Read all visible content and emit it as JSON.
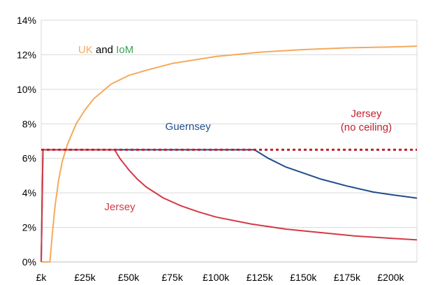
{
  "chart_data": {
    "type": "line",
    "title": "",
    "xlabel": "",
    "ylabel": "",
    "xlim": [
      0,
      215
    ],
    "ylim": [
      0,
      14
    ],
    "x_unit": "£k",
    "y_unit": "%",
    "grid": true,
    "x_ticks": [
      {
        "value": 0,
        "label": "£k"
      },
      {
        "value": 25,
        "label": "£25k"
      },
      {
        "value": 50,
        "label": "£50k"
      },
      {
        "value": 75,
        "label": "£75k"
      },
      {
        "value": 100,
        "label": "£100k"
      },
      {
        "value": 125,
        "label": "£125k"
      },
      {
        "value": 150,
        "label": "£150k"
      },
      {
        "value": 175,
        "label": "£175k"
      },
      {
        "value": 200,
        "label": "£200k"
      }
    ],
    "y_ticks": [
      {
        "value": 0,
        "label": "0%"
      },
      {
        "value": 2,
        "label": "2%"
      },
      {
        "value": 4,
        "label": "4%"
      },
      {
        "value": 6,
        "label": "6%"
      },
      {
        "value": 8,
        "label": "8%"
      },
      {
        "value": 10,
        "label": "10%"
      },
      {
        "value": 12,
        "label": "12%"
      },
      {
        "value": 14,
        "label": "14%"
      }
    ],
    "series": [
      {
        "name": "UK and IoM",
        "color": "#f5a95a",
        "style": "solid",
        "points": [
          [
            0,
            0
          ],
          [
            5,
            0
          ],
          [
            6,
            1.2
          ],
          [
            7,
            2.3
          ],
          [
            8,
            3.3
          ],
          [
            10,
            4.75
          ],
          [
            12,
            5.8
          ],
          [
            15,
            6.8
          ],
          [
            20,
            8.0
          ],
          [
            25,
            8.8
          ],
          [
            30,
            9.45
          ],
          [
            40,
            10.3
          ],
          [
            50,
            10.8
          ],
          [
            60,
            11.1
          ],
          [
            75,
            11.5
          ],
          [
            100,
            11.9
          ],
          [
            125,
            12.15
          ],
          [
            150,
            12.3
          ],
          [
            175,
            12.4
          ],
          [
            200,
            12.45
          ],
          [
            215,
            12.5
          ]
        ]
      },
      {
        "name": "Guernsey",
        "color": "#1f4e8c",
        "style": "solid",
        "points": [
          [
            0,
            0
          ],
          [
            1,
            6.5
          ],
          [
            122,
            6.5
          ],
          [
            130,
            6.0
          ],
          [
            140,
            5.5
          ],
          [
            150,
            5.15
          ],
          [
            160,
            4.8
          ],
          [
            175,
            4.4
          ],
          [
            190,
            4.05
          ],
          [
            200,
            3.9
          ],
          [
            215,
            3.7
          ]
        ]
      },
      {
        "name": "Jersey",
        "color": "#d33a45",
        "style": "solid",
        "points": [
          [
            0,
            0
          ],
          [
            1,
            6.5
          ],
          [
            42,
            6.5
          ],
          [
            45,
            6.0
          ],
          [
            50,
            5.35
          ],
          [
            55,
            4.8
          ],
          [
            60,
            4.35
          ],
          [
            70,
            3.7
          ],
          [
            80,
            3.25
          ],
          [
            90,
            2.9
          ],
          [
            100,
            2.6
          ],
          [
            120,
            2.2
          ],
          [
            140,
            1.9
          ],
          [
            160,
            1.7
          ],
          [
            180,
            1.5
          ],
          [
            200,
            1.37
          ],
          [
            215,
            1.28
          ]
        ]
      },
      {
        "name": "Jersey (no ceiling)",
        "color": "#c0202e",
        "style": "dotted",
        "points": [
          [
            0,
            6.5
          ],
          [
            215,
            6.5
          ]
        ]
      }
    ],
    "annotations": [
      {
        "id": "uk-iom",
        "parts": [
          {
            "text": "UK",
            "color": "#f5a95a"
          },
          {
            "text": " and ",
            "color": "#000000"
          },
          {
            "text": "IoM",
            "color": "#3aa357"
          }
        ],
        "x": 37,
        "y": 12.1
      },
      {
        "id": "guernsey",
        "parts": [
          {
            "text": "Guernsey",
            "color": "#1f4e8c"
          }
        ],
        "x": 84,
        "y": 7.65
      },
      {
        "id": "jersey",
        "parts": [
          {
            "text": "Jersey",
            "color": "#d33a45"
          }
        ],
        "x": 45,
        "y": 3.0
      },
      {
        "id": "jersey-no-ceiling-1",
        "parts": [
          {
            "text": "Jersey",
            "color": "#c0202e"
          }
        ],
        "x": 186,
        "y": 8.4
      },
      {
        "id": "jersey-no-ceiling-2",
        "parts": [
          {
            "text": "(no ceiling)",
            "color": "#c0202e"
          }
        ],
        "x": 186,
        "y": 7.6
      }
    ]
  }
}
